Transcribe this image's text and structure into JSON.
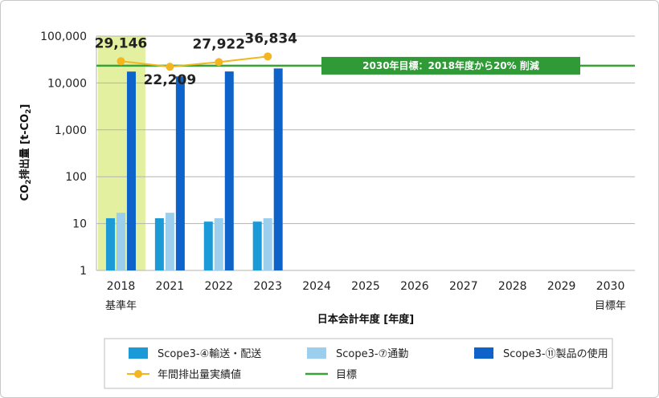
{
  "chart_data": {
    "type": "bar",
    "scale": "log",
    "ylim": [
      1,
      100000
    ],
    "ylabel_main": "CO",
    "ylabel_sub": "2",
    "ylabel_rest": "排出量 [t-CO",
    "ylabel_sub2": "2",
    "ylabel_end": "]",
    "xlabel": "日本会計年度 [年度]",
    "y_ticks": [
      "1",
      "10",
      "100",
      "1,000",
      "10,000",
      "100,000"
    ],
    "categories": [
      "2018",
      "2021",
      "2022",
      "2023",
      "2024",
      "2025",
      "2026",
      "2027",
      "2028",
      "2029",
      "2030"
    ],
    "category_notes": {
      "2018": "基準年",
      "2030": "目標年"
    },
    "base_year_highlight": "2018",
    "series": [
      {
        "name": "Scope3-④輸送・配送",
        "type": "bar",
        "color": "#1a9ad6",
        "values": [
          13,
          13,
          11,
          11,
          null,
          null,
          null,
          null,
          null,
          null,
          null
        ]
      },
      {
        "name": "Scope3-⑦通勤",
        "type": "bar",
        "color": "#9ccfee",
        "values": [
          17,
          17,
          13,
          13,
          null,
          null,
          null,
          null,
          null,
          null,
          null
        ]
      },
      {
        "name": "Scope3-⑪製品の使用",
        "type": "bar",
        "color": "#0d63c9",
        "values": [
          17500,
          13800,
          17600,
          20400,
          null,
          null,
          null,
          null,
          null,
          null,
          null
        ]
      },
      {
        "name": "年間排出量実績値",
        "type": "line",
        "color": "#f3b620",
        "values": [
          29146,
          22209,
          27922,
          36834,
          null,
          null,
          null,
          null,
          null,
          null,
          null
        ]
      },
      {
        "name": "目標",
        "type": "hline",
        "color": "#3aa136",
        "value": 23317
      }
    ],
    "data_labels": [
      "29,146",
      "22,209",
      "27,922",
      "36,834"
    ],
    "target_annotation": "2030年目標：2018年度から20% 削減",
    "legend_position": "bottom"
  },
  "colors": {
    "highlight": "#e2f0a0",
    "grid": "#b3b3b3",
    "target_box": "#2f9a36"
  }
}
